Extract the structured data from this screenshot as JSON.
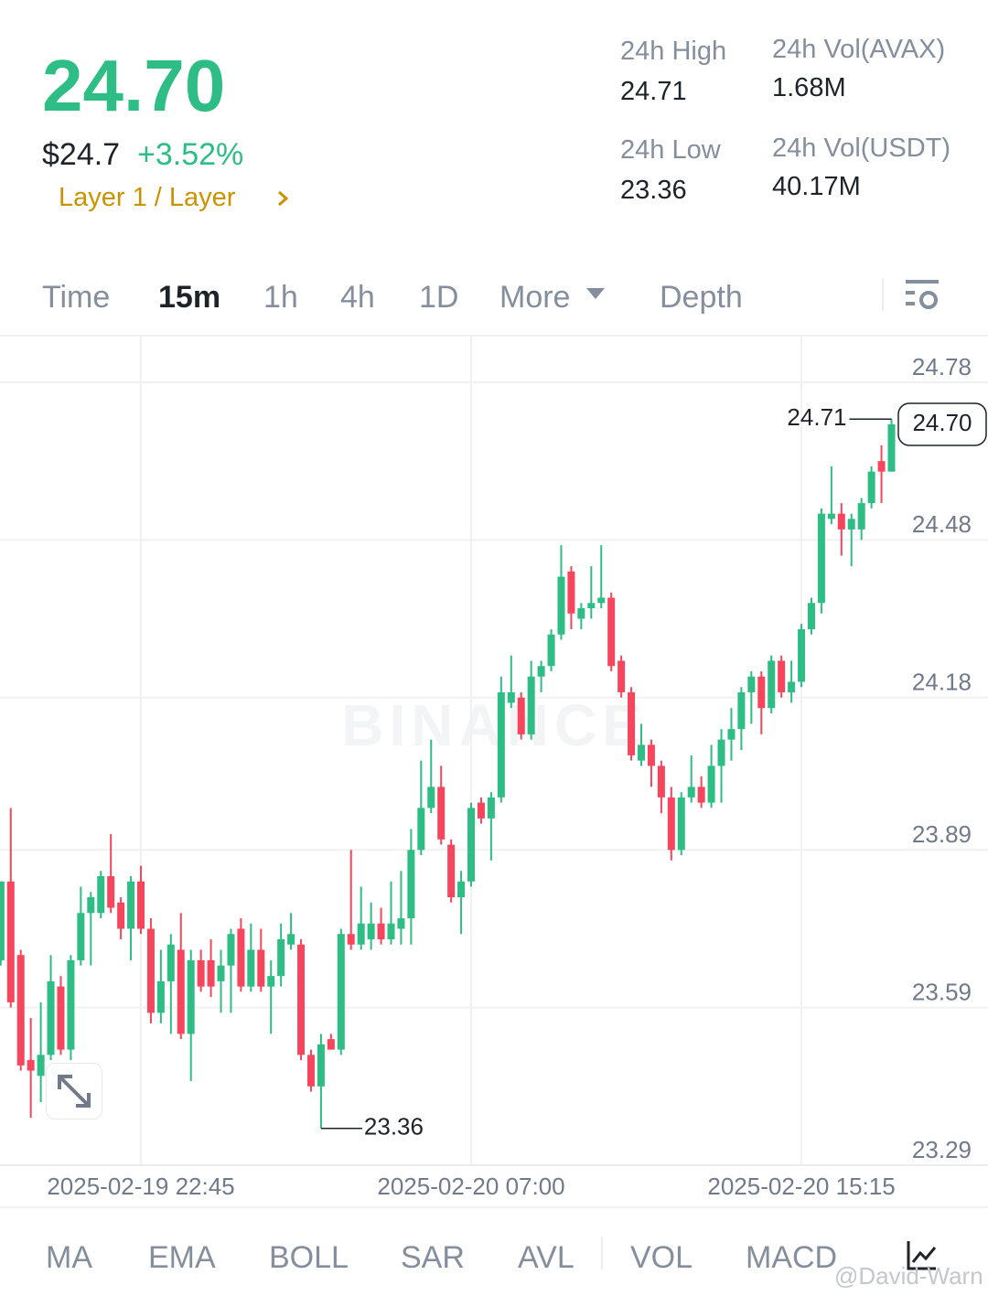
{
  "header": {
    "price": "24.70",
    "fiat_price": "$24.7",
    "change": "+3.52%",
    "tag": "Layer 1 / Layer"
  },
  "stats": [
    {
      "label": "24h High",
      "value": "24.71"
    },
    {
      "label": "24h Vol(AVAX)",
      "value": "1.68M"
    },
    {
      "label": "24h Low",
      "value": "23.36"
    },
    {
      "label": "24h Vol(USDT)",
      "value": "40.17M"
    }
  ],
  "tabs": [
    "Time",
    "15m",
    "1h",
    "4h",
    "1D",
    "More",
    "Depth"
  ],
  "indicators": [
    "MA",
    "EMA",
    "BOLL",
    "SAR",
    "AVL",
    "VOL",
    "MACD"
  ],
  "brand_watermark": "BINANCE",
  "watermark": "@David-Warn",
  "chart_data": {
    "type": "candlestick",
    "categories": [
      null,
      null,
      null,
      null,
      null,
      null,
      null,
      null,
      null,
      null,
      null,
      null,
      null,
      null,
      "2025-02-19 22:45",
      null,
      null,
      null,
      null,
      null,
      null,
      null,
      null,
      null,
      null,
      null,
      null,
      null,
      null,
      null,
      null,
      null,
      null,
      null,
      null,
      null,
      null,
      null,
      null,
      null,
      null,
      null,
      null,
      null,
      null,
      null,
      null,
      "2025-02-20 07:00",
      null,
      null,
      null,
      null,
      null,
      null,
      null,
      null,
      null,
      null,
      null,
      null,
      null,
      null,
      null,
      null,
      null,
      null,
      null,
      null,
      null,
      null,
      null,
      null,
      null,
      null,
      null,
      null,
      null,
      null,
      null,
      null,
      "2025-02-20 15:15",
      null,
      null,
      null,
      null,
      null,
      null,
      null,
      null,
      null
    ],
    "open": [
      23.68,
      23.83,
      23.69,
      23.49,
      23.46,
      23.5,
      23.63,
      23.51,
      23.68,
      23.77,
      23.77,
      23.84,
      23.79,
      23.74,
      23.83,
      23.74,
      23.58,
      23.64,
      23.7,
      23.54,
      23.68,
      23.68,
      23.64,
      23.67,
      23.74,
      23.63,
      23.7,
      23.63,
      23.65,
      23.71,
      23.71,
      23.5,
      23.44,
      23.53,
      23.51,
      23.73,
      23.71,
      23.72,
      23.75,
      23.72,
      23.74,
      23.76,
      23.89,
      23.97,
      24.01,
      23.9,
      23.8,
      23.83,
      23.98,
      23.95,
      23.99,
      24.17,
      24.18,
      24.11,
      24.22,
      24.24,
      24.3,
      24.42,
      24.33,
      24.35,
      24.36,
      24.37,
      24.25,
      24.19,
      24.06,
      24.09,
      24.05,
      23.99,
      23.89,
      23.99,
      24.01,
      23.98,
      24.05,
      24.1,
      24.12,
      24.19,
      24.22,
      24.16,
      24.25,
      24.19,
      24.21,
      24.31,
      24.36,
      24.52,
      24.53,
      24.5,
      24.5,
      24.55,
      24.63,
      24.61
    ],
    "high": [
      23.83,
      23.97,
      23.7,
      23.57,
      23.6,
      23.69,
      23.65,
      23.69,
      23.82,
      23.81,
      23.85,
      23.92,
      23.8,
      23.84,
      23.86,
      23.76,
      23.7,
      23.73,
      23.77,
      23.7,
      23.7,
      23.72,
      23.7,
      23.74,
      23.76,
      23.75,
      23.74,
      23.68,
      23.75,
      23.77,
      23.72,
      23.51,
      23.54,
      23.54,
      23.74,
      23.89,
      23.82,
      23.79,
      23.78,
      23.83,
      23.85,
      23.93,
      24.06,
      24.1,
      24.05,
      23.91,
      23.85,
      23.98,
      23.99,
      24.0,
      24.22,
      24.26,
      24.19,
      24.25,
      24.25,
      24.31,
      24.47,
      24.43,
      24.36,
      24.43,
      24.47,
      24.38,
      24.26,
      24.2,
      24.13,
      24.1,
      24.06,
      24.01,
      24.0,
      24.07,
      24.03,
      24.09,
      24.12,
      24.16,
      24.2,
      24.23,
      24.23,
      24.26,
      24.26,
      24.25,
      24.32,
      24.37,
      24.54,
      24.62,
      24.55,
      24.53,
      24.56,
      24.62,
      24.66,
      24.71
    ],
    "low": [
      23.67,
      23.59,
      23.47,
      23.38,
      23.41,
      23.49,
      23.5,
      23.49,
      23.67,
      23.67,
      23.76,
      23.77,
      23.72,
      23.68,
      23.73,
      23.56,
      23.56,
      23.54,
      23.53,
      23.45,
      23.62,
      23.61,
      23.58,
      23.58,
      23.62,
      23.62,
      23.62,
      23.54,
      23.63,
      23.7,
      23.49,
      23.43,
      23.36,
      23.51,
      23.5,
      23.7,
      23.7,
      23.7,
      23.71,
      23.71,
      23.71,
      23.71,
      23.88,
      23.96,
      23.9,
      23.79,
      23.73,
      23.82,
      23.94,
      23.87,
      23.98,
      24.16,
      24.1,
      24.1,
      24.19,
      24.23,
      24.29,
      24.31,
      24.31,
      24.33,
      24.35,
      24.23,
      24.18,
      24.06,
      24.05,
      24.01,
      23.96,
      23.87,
      23.88,
      23.98,
      23.97,
      23.97,
      23.98,
      24.06,
      24.08,
      24.13,
      24.11,
      24.15,
      24.18,
      24.17,
      24.2,
      24.3,
      24.34,
      24.51,
      24.45,
      24.43,
      24.48,
      24.54,
      24.55,
      24.61
    ],
    "close": [
      23.83,
      23.6,
      23.48,
      23.47,
      23.5,
      23.64,
      23.51,
      23.68,
      23.77,
      23.8,
      23.84,
      23.78,
      23.74,
      23.83,
      23.74,
      23.58,
      23.64,
      23.71,
      23.54,
      23.68,
      23.63,
      23.63,
      23.67,
      23.73,
      23.63,
      23.7,
      23.63,
      23.65,
      23.72,
      23.73,
      23.5,
      23.44,
      23.52,
      23.51,
      23.73,
      23.71,
      23.75,
      23.75,
      23.72,
      23.75,
      23.76,
      23.89,
      23.97,
      24.01,
      23.91,
      23.8,
      23.83,
      23.97,
      23.95,
      23.99,
      24.19,
      24.19,
      24.11,
      24.22,
      24.24,
      24.3,
      24.41,
      24.34,
      24.35,
      24.36,
      24.37,
      24.24,
      24.19,
      24.07,
      24.09,
      24.05,
      23.99,
      23.89,
      23.99,
      24.01,
      23.98,
      24.05,
      24.1,
      24.12,
      24.19,
      24.22,
      24.16,
      24.25,
      24.19,
      24.21,
      24.31,
      24.36,
      24.53,
      24.53,
      24.5,
      24.52,
      24.55,
      24.61,
      24.61,
      24.7
    ],
    "up_color": "#2ebd85",
    "down_color": "#f6465d",
    "ylim": [
      23.29,
      24.867
    ],
    "yticks": [
      24.78,
      24.48,
      24.18,
      23.89,
      23.59,
      23.29
    ],
    "grid": true,
    "high_label": "24.71",
    "low_label": "23.36",
    "last_price_label": "24.70"
  }
}
